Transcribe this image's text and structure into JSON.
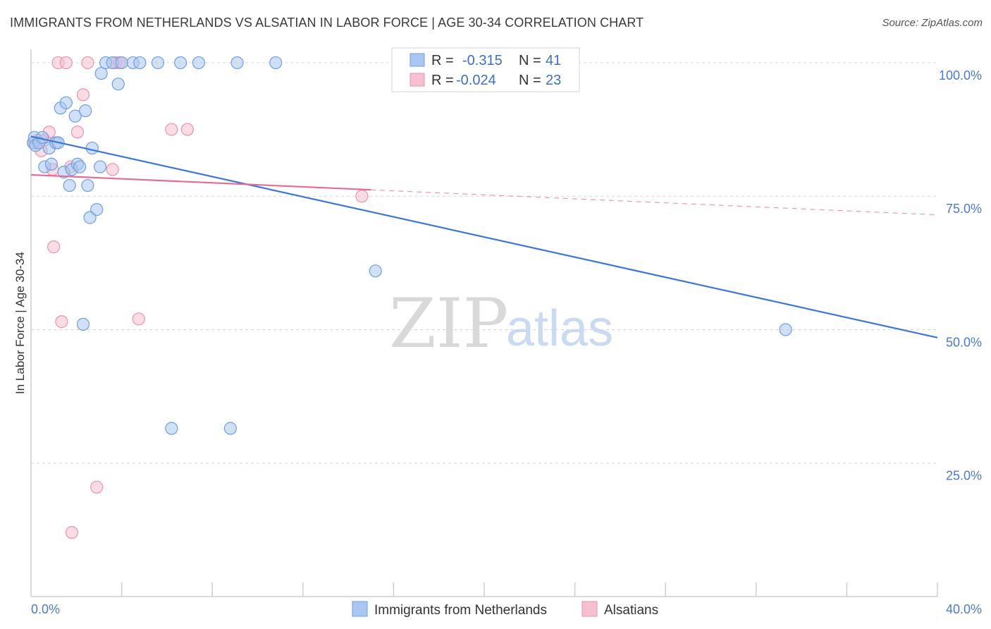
{
  "header": {
    "title": "IMMIGRANTS FROM NETHERLANDS VS ALSATIAN IN LABOR FORCE | AGE 30-34 CORRELATION CHART",
    "source": "Source: ZipAtlas.com"
  },
  "watermark": {
    "zip": "ZIP",
    "atlas": "atlas"
  },
  "colors": {
    "blue_fill": "#a9c7f0",
    "blue_stroke": "#6f9fe0",
    "blue_line": "#3b78d6",
    "pink_fill": "#f6c0d0",
    "pink_stroke": "#ea93ad",
    "pink_line": "#e56a95",
    "axis_text": "#4a7bd0",
    "grid": "#d8d8d8"
  },
  "legend": {
    "rows": [
      {
        "r_label": "R =",
        "r_value": "-0.315",
        "n_label": "N =",
        "n_value": "41"
      },
      {
        "r_label": "R =",
        "r_value": "-0.024",
        "n_label": "N =",
        "n_value": "23"
      }
    ]
  },
  "chart_data": {
    "type": "scatter",
    "title": "IMMIGRANTS FROM NETHERLANDS VS ALSATIAN IN LABOR FORCE | AGE 30-34 CORRELATION CHART",
    "xlabel": "",
    "ylabel": "In Labor Force | Age 30-34",
    "xlim": [
      0,
      40
    ],
    "ylim": [
      0,
      102.5
    ],
    "x_tick_labels": [
      "0.0%",
      "40.0%"
    ],
    "y_ticks": [
      25,
      50,
      75,
      100
    ],
    "y_tick_labels": [
      "25.0%",
      "50.0%",
      "75.0%",
      "100.0%"
    ],
    "series": [
      {
        "name": "Immigrants from Netherlands",
        "color": "#a9c7f0",
        "r": -0.315,
        "n": 41,
        "trend": {
          "x": [
            0,
            40
          ],
          "y": [
            86.2,
            48.5
          ],
          "solid_until": 40
        },
        "points": [
          {
            "x": 0.1,
            "y": 85.0
          },
          {
            "x": 0.15,
            "y": 86.0
          },
          {
            "x": 0.2,
            "y": 84.5
          },
          {
            "x": 0.35,
            "y": 85.0
          },
          {
            "x": 0.5,
            "y": 86.0
          },
          {
            "x": 0.6,
            "y": 80.5
          },
          {
            "x": 0.8,
            "y": 84.0
          },
          {
            "x": 0.9,
            "y": 81.0
          },
          {
            "x": 1.1,
            "y": 85.0
          },
          {
            "x": 1.2,
            "y": 85.0
          },
          {
            "x": 1.3,
            "y": 91.5
          },
          {
            "x": 1.45,
            "y": 79.5
          },
          {
            "x": 1.55,
            "y": 92.5
          },
          {
            "x": 1.7,
            "y": 77.0
          },
          {
            "x": 1.8,
            "y": 80.0
          },
          {
            "x": 1.95,
            "y": 90.0
          },
          {
            "x": 2.05,
            "y": 81.0
          },
          {
            "x": 2.15,
            "y": 80.5
          },
          {
            "x": 2.3,
            "y": 51.0
          },
          {
            "x": 2.4,
            "y": 91.0
          },
          {
            "x": 2.5,
            "y": 77.0
          },
          {
            "x": 2.6,
            "y": 71.0
          },
          {
            "x": 2.7,
            "y": 84.0
          },
          {
            "x": 2.9,
            "y": 72.5
          },
          {
            "x": 3.05,
            "y": 80.5
          },
          {
            "x": 3.1,
            "y": 98.0
          },
          {
            "x": 3.3,
            "y": 100.0
          },
          {
            "x": 3.6,
            "y": 100.0
          },
          {
            "x": 3.85,
            "y": 96.0
          },
          {
            "x": 4.0,
            "y": 100.0
          },
          {
            "x": 4.5,
            "y": 100.0
          },
          {
            "x": 4.8,
            "y": 100.0
          },
          {
            "x": 5.6,
            "y": 100.0
          },
          {
            "x": 6.2,
            "y": 31.5
          },
          {
            "x": 6.6,
            "y": 100.0
          },
          {
            "x": 7.4,
            "y": 100.0
          },
          {
            "x": 8.8,
            "y": 31.5
          },
          {
            "x": 9.1,
            "y": 100.0
          },
          {
            "x": 10.8,
            "y": 100.0
          },
          {
            "x": 15.2,
            "y": 61.0
          },
          {
            "x": 33.3,
            "y": 50.0
          }
        ]
      },
      {
        "name": "Alsatians",
        "color": "#f6c0d0",
        "r": -0.024,
        "n": 23,
        "trend": {
          "x": [
            0,
            40
          ],
          "y": [
            79.0,
            71.5
          ],
          "solid_until": 15.0
        },
        "points": [
          {
            "x": 0.15,
            "y": 85.0
          },
          {
            "x": 0.3,
            "y": 85.5
          },
          {
            "x": 0.45,
            "y": 83.5
          },
          {
            "x": 0.6,
            "y": 85.5
          },
          {
            "x": 0.8,
            "y": 87.0
          },
          {
            "x": 0.95,
            "y": 80.0
          },
          {
            "x": 1.0,
            "y": 65.5
          },
          {
            "x": 1.2,
            "y": 100.0
          },
          {
            "x": 1.35,
            "y": 51.5
          },
          {
            "x": 1.55,
            "y": 100.0
          },
          {
            "x": 1.75,
            "y": 80.5
          },
          {
            "x": 1.8,
            "y": 12.0
          },
          {
            "x": 2.05,
            "y": 87.0
          },
          {
            "x": 2.3,
            "y": 94.0
          },
          {
            "x": 2.5,
            "y": 100.0
          },
          {
            "x": 2.9,
            "y": 20.5
          },
          {
            "x": 3.6,
            "y": 80.0
          },
          {
            "x": 3.75,
            "y": 100.0
          },
          {
            "x": 3.9,
            "y": 100.0
          },
          {
            "x": 4.75,
            "y": 52.0
          },
          {
            "x": 6.2,
            "y": 87.5
          },
          {
            "x": 6.9,
            "y": 87.5
          },
          {
            "x": 14.6,
            "y": 75.0
          }
        ]
      }
    ],
    "legend_placement": "top-center",
    "grid": true
  }
}
